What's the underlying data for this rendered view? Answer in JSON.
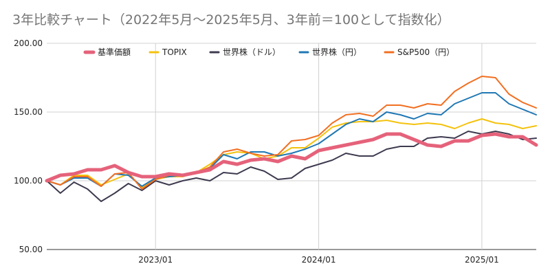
{
  "chart_data": {
    "type": "line",
    "title": "3年比較チャート（2022年5月～2025年5月、3年前＝100として指数化）",
    "xlabel": "",
    "ylabel": "",
    "ylim": [
      50,
      200
    ],
    "yticks": [
      "50.00",
      "100.00",
      "150.00",
      "200.00"
    ],
    "xticks": [
      "2023/01",
      "2024/01",
      "2025/01"
    ],
    "grid": true,
    "legend_position": "top",
    "x": [
      "2022/05",
      "2022/06",
      "2022/07",
      "2022/08",
      "2022/09",
      "2022/10",
      "2022/11",
      "2022/12",
      "2023/01",
      "2023/02",
      "2023/03",
      "2023/04",
      "2023/05",
      "2023/06",
      "2023/07",
      "2023/08",
      "2023/09",
      "2023/10",
      "2023/11",
      "2023/12",
      "2024/01",
      "2024/02",
      "2024/03",
      "2024/04",
      "2024/05",
      "2024/06",
      "2024/07",
      "2024/08",
      "2024/09",
      "2024/10",
      "2024/11",
      "2024/12",
      "2025/01",
      "2025/02",
      "2025/03",
      "2025/04",
      "2025/05"
    ],
    "series": [
      {
        "name": "基準価額",
        "color": "#e5627a",
        "width": 5,
        "values": [
          100,
          104,
          105,
          108,
          108,
          111,
          106,
          103,
          103,
          105,
          104,
          106,
          108,
          114,
          112,
          115,
          116,
          114,
          118,
          116,
          122,
          124,
          126,
          128,
          130,
          134,
          134,
          130,
          126,
          125,
          129,
          129,
          133,
          134,
          132,
          132,
          126
        ]
      },
      {
        "name": "TOPIX",
        "color": "#f4c20d",
        "width": 2,
        "values": [
          100,
          97,
          104,
          104,
          97,
          101,
          105,
          95,
          101,
          103,
          103,
          106,
          112,
          119,
          121,
          120,
          116,
          118,
          124,
          124,
          131,
          139,
          142,
          143,
          143,
          144,
          142,
          141,
          142,
          141,
          138,
          142,
          145,
          142,
          141,
          138,
          140
        ]
      },
      {
        "name": "世界株（ドル）",
        "color": "#3e3a4f",
        "width": 2,
        "values": [
          100,
          91,
          99,
          94,
          85,
          91,
          98,
          93,
          100,
          97,
          100,
          102,
          100,
          106,
          105,
          110,
          107,
          101,
          102,
          109,
          112,
          115,
          120,
          118,
          118,
          123,
          125,
          125,
          131,
          132,
          131,
          136,
          134,
          136,
          134,
          130,
          131
        ]
      },
      {
        "name": "世界株（円）",
        "color": "#1f77b4",
        "width": 2,
        "values": [
          100,
          97,
          102,
          102,
          96,
          105,
          104,
          96,
          102,
          103,
          104,
          106,
          109,
          119,
          116,
          121,
          121,
          118,
          120,
          123,
          127,
          134,
          141,
          145,
          143,
          150,
          148,
          145,
          149,
          148,
          156,
          160,
          164,
          164,
          156,
          152,
          148
        ]
      },
      {
        "name": "S&P500（円）",
        "color": "#f26f21",
        "width": 2,
        "values": [
          100,
          97,
          103,
          103,
          96,
          105,
          106,
          94,
          101,
          104,
          104,
          106,
          110,
          121,
          123,
          120,
          118,
          119,
          129,
          130,
          133,
          142,
          148,
          149,
          147,
          155,
          155,
          153,
          156,
          155,
          165,
          171,
          176,
          175,
          163,
          157,
          153
        ]
      }
    ]
  }
}
